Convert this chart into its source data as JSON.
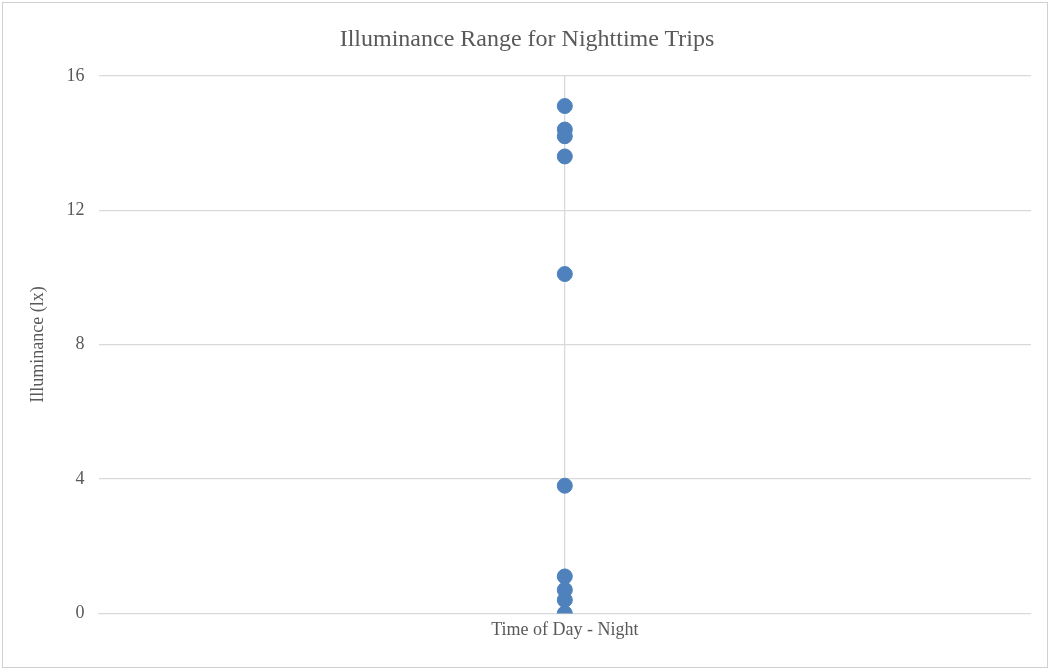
{
  "chart_data": {
    "type": "scatter",
    "title": "Illuminance Range for Nighttime Trips",
    "ylabel": "Illuminance (lx)",
    "categories": [
      "Time of Day - Night"
    ],
    "series": [
      {
        "color": "#4f81bd",
        "x": [
          "Time of Day - Night",
          "Time of Day - Night",
          "Time of Day - Night",
          "Time of Day - Night",
          "Time of Day - Night",
          "Time of Day - Night",
          "Time of Day - Night",
          "Time of Day - Night",
          "Time of Day - Night",
          "Time of Day - Night"
        ],
        "values": [
          15.1,
          14.4,
          14.2,
          13.6,
          10.1,
          3.8,
          1.1,
          0.7,
          0.4,
          0
        ]
      }
    ],
    "ylim": [
      0,
      16
    ],
    "yticks": [
      0,
      4,
      8,
      12,
      16
    ],
    "grid": true,
    "marker": "circle",
    "legend": false
  }
}
